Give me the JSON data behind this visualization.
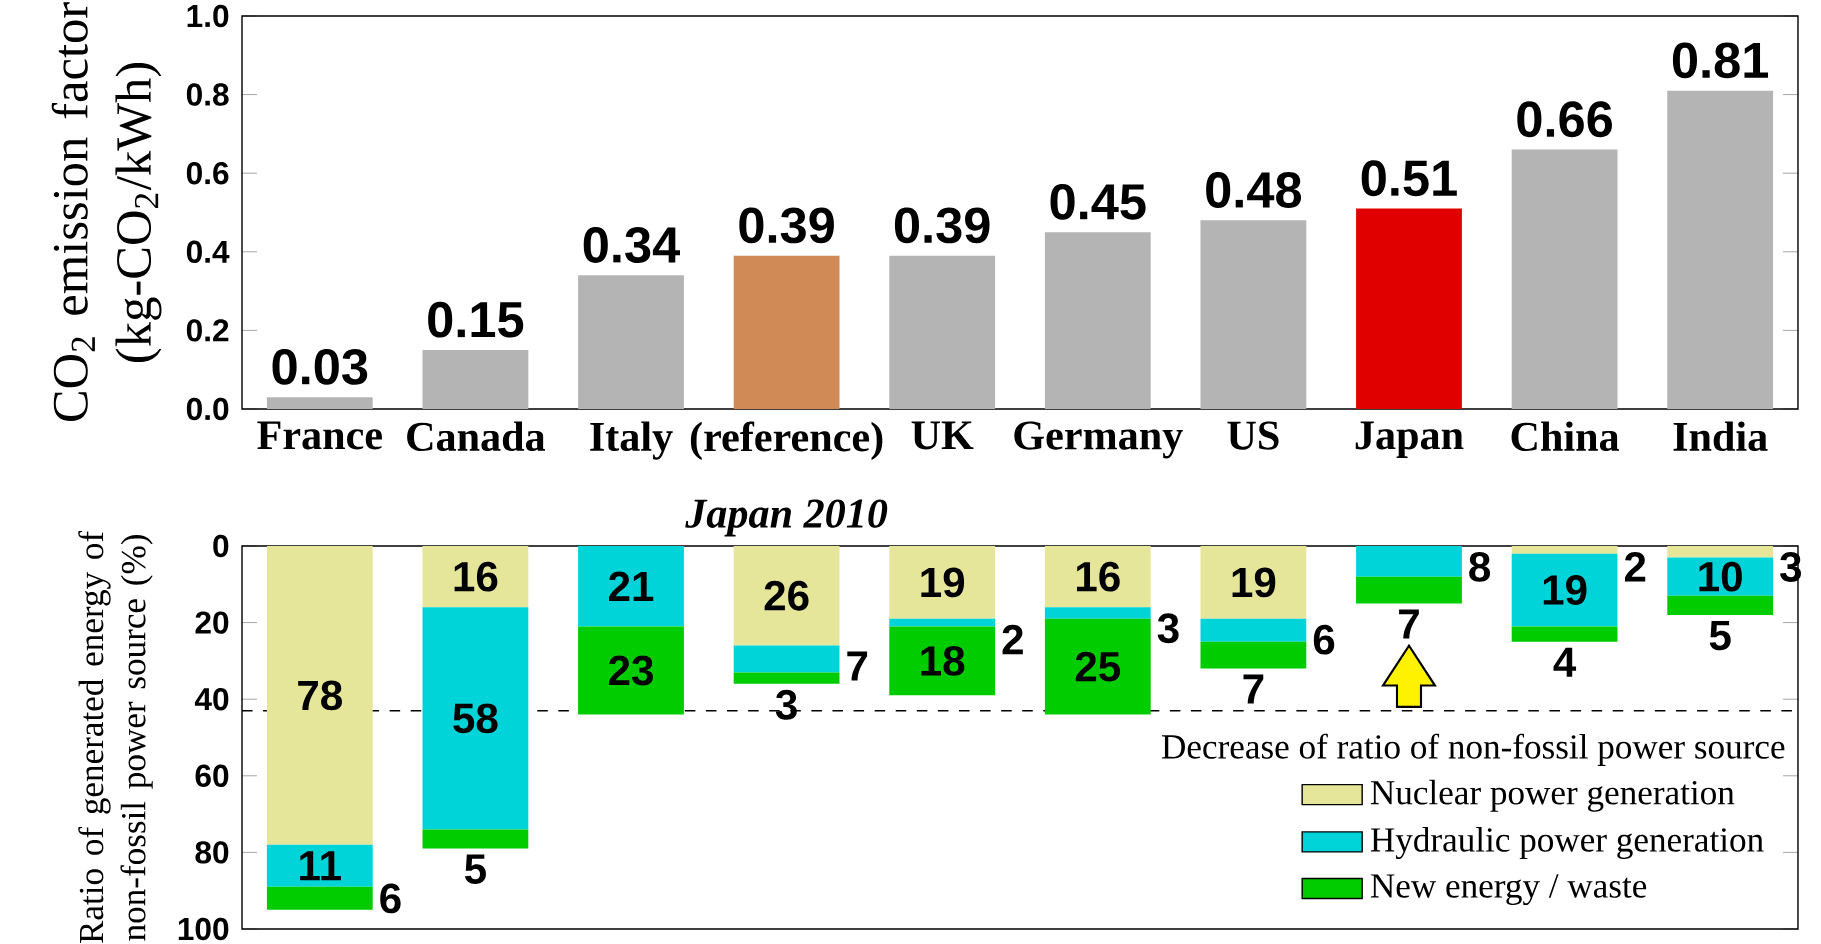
{
  "chart_data": [
    {
      "type": "bar",
      "ylabel": "CO$_{2}$ emission factor (kg-CO$_{2}$/kWh)",
      "categories": [
        "France",
        "Canada",
        "Italy",
        "(reference)",
        "UK",
        "Germany",
        "US",
        "Japan",
        "China",
        "India"
      ],
      "values": [
        0.03,
        0.15,
        0.34,
        0.39,
        0.39,
        0.45,
        0.48,
        0.51,
        0.66,
        0.81
      ],
      "colors": [
        "#b4b4b4",
        "#b4b4b4",
        "#b4b4b4",
        "#d08a55",
        "#b4b4b4",
        "#b4b4b4",
        "#b4b4b4",
        "#e00000",
        "#b4b4b4",
        "#b4b4b4"
      ],
      "ylim": [
        0,
        1.0
      ],
      "yticks": [
        {
          "value": 0,
          "label": "0.0"
        },
        0.2,
        0.4,
        0.6,
        0.8,
        {
          "value": 1.0,
          "label": "1.0"
        }
      ],
      "data_labels": true,
      "annotations": [
        "Japan 2010"
      ]
    },
    {
      "type": "bar",
      "stacked": true,
      "ylabel": "Ratio of generated energy of non-fossil power source (%)",
      "categories": [
        null,
        null,
        null,
        null,
        null,
        null,
        null,
        null,
        null,
        null
      ],
      "tick_labels": "y",
      "series": [
        {
          "name": "Nuclear power generation",
          "color": "#e6e69a",
          "values": [
            78,
            16,
            null,
            26,
            19,
            16,
            19,
            null,
            2,
            3
          ]
        },
        {
          "name": "Hydraulic power generation",
          "color": "#00d4d8",
          "values": [
            11,
            58,
            21,
            7,
            2,
            3,
            6,
            8,
            19,
            10
          ]
        },
        {
          "name": "New energy / waste",
          "color": "#00cc00",
          "values": [
            6,
            5,
            23,
            3,
            18,
            25,
            7,
            7,
            4,
            5
          ]
        }
      ],
      "ylim": [
        100,
        0
      ],
      "yticks": [
        0,
        20,
        40,
        60,
        80,
        100
      ],
      "data_labels": true,
      "legend": "bottom right",
      "ref_lines": [
        {
          "axis": "y",
          "value": 43,
          "label": "Decrease of ratio of non-fossil power source",
          "line_style": "dashed",
          "color": "#000000"
        }
      ]
    }
  ]
}
